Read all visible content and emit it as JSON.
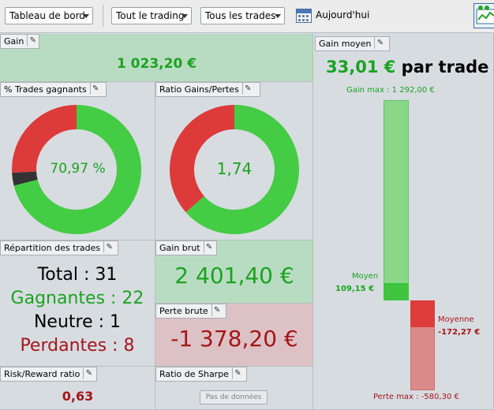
{
  "toolbar": {
    "dashboard_label": "Tableau de bord",
    "trading_label": "Tout le trading",
    "trades_label": "Tous les trades",
    "today_label": "Aujourd'hui"
  },
  "gain": {
    "title": "Gain",
    "value": "1 023,20 €"
  },
  "win_pct": {
    "title": "% Trades gagnants",
    "value": "70,97 %",
    "win_fraction": 0.7097,
    "neutral_fraction": 0.0323,
    "loss_fraction": 0.258
  },
  "ratio": {
    "title": "Ratio Gains/Pertes",
    "value": "1,74",
    "gain_fraction": 0.635
  },
  "avg_gain": {
    "title": "Gain moyen",
    "value": "33,01 €",
    "suffix": "par trade",
    "max_gain_label": "Gain max : 1 292,00 €",
    "avg_label": "Moyen",
    "avg_value": "109,15 €",
    "avg_loss_label": "Moyenne",
    "avg_loss_value": "-172,27 €",
    "max_loss_label": "Perte max : -580,30 €"
  },
  "repartition": {
    "title": "Répartition des trades",
    "total": "Total : 31",
    "wins": "Gagnantes : 22",
    "neutral": "Neutre : 1",
    "losses": "Perdantes : 8"
  },
  "gross_gain": {
    "title": "Gain brut",
    "value": "2 401,40 €"
  },
  "gross_loss": {
    "title": "Perte brute",
    "value": "-1 378,20 €"
  },
  "risk_reward": {
    "title": "Risk/Reward ratio",
    "value": "0,63"
  },
  "sharpe": {
    "title": "Ratio de Sharpe",
    "nodata": "Pas de données"
  },
  "colors": {
    "green": "#44cc44",
    "red": "#dd3a3a",
    "dark": "#333333"
  }
}
